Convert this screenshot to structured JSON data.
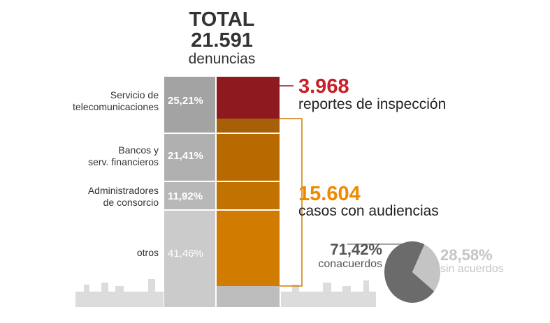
{
  "header": {
    "title": "TOTAL",
    "total": "21.591",
    "unit": "denuncias"
  },
  "categories": [
    {
      "label_line1": "Servicio de",
      "label_line2": "telecomunicaciones",
      "pct": "25,21%"
    },
    {
      "label_line1": "Bancos y",
      "label_line2": "serv. financieros",
      "pct": "21,41%"
    },
    {
      "label_line1": "Administradores",
      "label_line2": "de consorcio",
      "pct": "11,92%"
    },
    {
      "label_line1": "otros",
      "label_line2": "",
      "pct": "41,46%"
    }
  ],
  "reports": {
    "value": "3.968",
    "label": "reportes de inspección"
  },
  "hearings": {
    "value": "15.604",
    "label": "casos con audiencias"
  },
  "pie": {
    "with": {
      "pct": "71,42%",
      "label": "conacuerdos"
    },
    "without": {
      "pct": "28,58%",
      "label": "sin acuerdos"
    }
  },
  "colors": {
    "red": "#8e1a1f",
    "orange": "#d17b00",
    "dark": "#333333"
  },
  "chart_data": {
    "type": "bar",
    "title": "TOTAL 21.591 denuncias",
    "stacked_categories": [
      "Servicio de telecomunicaciones",
      "Bancos y serv. financieros",
      "Administradores de consorcio",
      "otros"
    ],
    "values_pct": [
      25.21,
      21.41,
      11.92,
      41.46
    ],
    "total": 21591,
    "outcomes": [
      {
        "name": "reportes de inspección",
        "value": 3968
      },
      {
        "name": "casos con audiencias",
        "value": 15604
      }
    ],
    "pie": {
      "categories": [
        "conacuerdos",
        "sin acuerdos"
      ],
      "values_pct": [
        71.42,
        28.58
      ]
    }
  }
}
